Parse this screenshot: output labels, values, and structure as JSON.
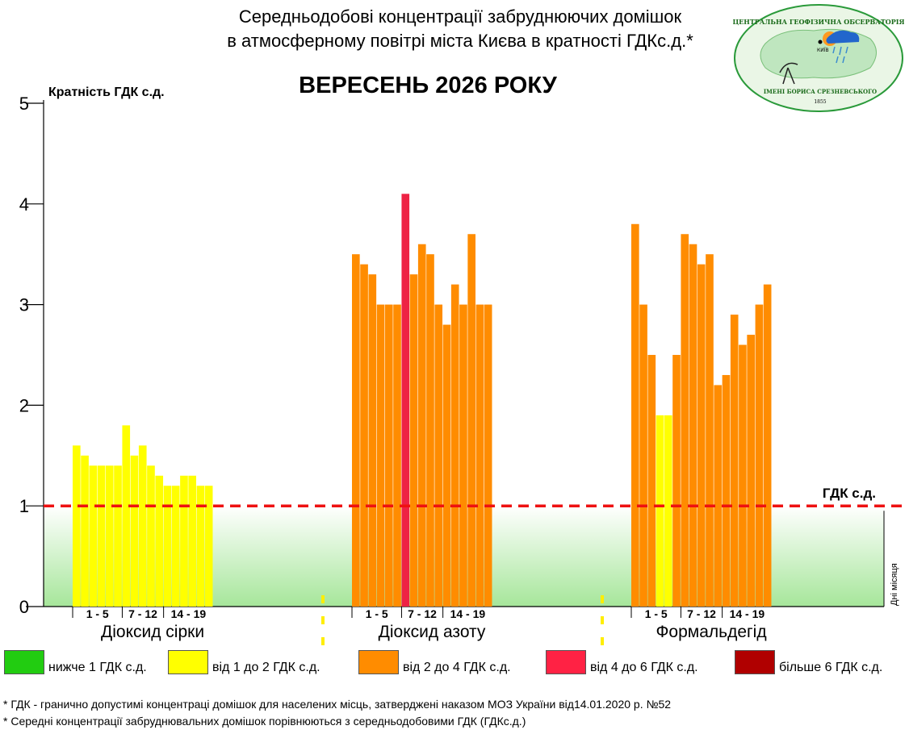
{
  "header": {
    "title_line1": "Середньодобові концентрації забруднюючих домішок",
    "title_line2": "в атмосферному повітрі міста Києва в кратності ГДКс.д.*",
    "subtitle": "ВЕРЕСЕНЬ 2026 РОКУ"
  },
  "logo": {
    "text_top": "ЦЕНТРАЛЬНА ГЕОФІЗИЧНА ОБСЕРВАТОРІЯ",
    "text_bottom": "ІМЕНІ БОРИСА СРЕЗНЕВСЬКОГО",
    "year": "1855",
    "city": "КИЇВ"
  },
  "chart_data": {
    "type": "bar",
    "ylabel": "Кратність ГДК с.д.",
    "xlabel": "Дні місяця",
    "ylim": [
      0,
      5
    ],
    "yticks": [
      "0",
      "1",
      "2",
      "3",
      "4",
      "5"
    ],
    "threshold": {
      "value": 1,
      "label": "ГДК с.д."
    },
    "groups": [
      {
        "name": "Діоксид сірки",
        "day_labels": [
          "1 - 5",
          "7 - 12",
          "14 - 19"
        ],
        "values": [
          1.6,
          1.5,
          1.4,
          1.4,
          1.4,
          1.4,
          1.8,
          1.5,
          1.6,
          1.4,
          1.3,
          1.2,
          1.2,
          1.3,
          1.3,
          1.2,
          1.2
        ],
        "colors": [
          "#ffff00",
          "#ffff00",
          "#ffff00",
          "#ffff00",
          "#ffff00",
          "#ffff00",
          "#ffff00",
          "#ffff00",
          "#ffff00",
          "#ffff00",
          "#ffff00",
          "#ffff00",
          "#ffff00",
          "#ffff00",
          "#ffff00",
          "#ffff00",
          "#ffff00"
        ]
      },
      {
        "name": "Діоксид азоту",
        "day_labels": [
          "1 - 5",
          "7 - 12",
          "14 - 19"
        ],
        "values": [
          3.5,
          3.4,
          3.3,
          3.0,
          3.0,
          3.0,
          4.1,
          3.3,
          3.6,
          3.5,
          3.0,
          2.8,
          3.2,
          3.0,
          3.7,
          3.0,
          3.0
        ],
        "colors": [
          "#ff8c00",
          "#ff8c00",
          "#ff8c00",
          "#ff8c00",
          "#ff8c00",
          "#ff8c00",
          "#ee2244",
          "#ff8c00",
          "#ff8c00",
          "#ff8c00",
          "#ff8c00",
          "#ff8c00",
          "#ff8c00",
          "#ff8c00",
          "#ff8c00",
          "#ff8c00",
          "#ff8c00"
        ]
      },
      {
        "name": "Формальдегід",
        "day_labels": [
          "1 - 5",
          "7 - 12",
          "14 - 19"
        ],
        "values": [
          3.8,
          3.0,
          2.5,
          1.9,
          1.9,
          2.5,
          3.7,
          3.6,
          3.4,
          3.5,
          2.2,
          2.3,
          2.9,
          2.6,
          2.7,
          3.0,
          3.2
        ],
        "colors": [
          "#ff8c00",
          "#ff8c00",
          "#ff8c00",
          "#ffff00",
          "#ffff00",
          "#ff8c00",
          "#ff8c00",
          "#ff8c00",
          "#ff8c00",
          "#ff8c00",
          "#ff8c00",
          "#ff8c00",
          "#ff8c00",
          "#ff8c00",
          "#ff8c00",
          "#ff8c00",
          "#ff8c00"
        ]
      }
    ],
    "legend": [
      {
        "label": "нижче 1 ГДК с.д.",
        "color": "#22cc11"
      },
      {
        "label": "від 1 до 2 ГДК с.д.",
        "color": "#ffff00"
      },
      {
        "label": "від 2 до 4 ГДК с.д.",
        "color": "#ff8c00"
      },
      {
        "label": "від 4 до 6 ГДК с.д.",
        "color": "#ff2244"
      },
      {
        "label": "більше 6 ГДК с.д.",
        "color": "#b00000"
      }
    ]
  },
  "footnotes": {
    "line1": "* ГДК - гранично допустимі концентраці домішок для населених місць, затверджені наказом МОЗ України від14.01.2020 р. №52",
    "line2": "* Середні концентрації забруднювальних домішок порівнюються з середньодобовими  ГДК (ГДКс.д.)"
  }
}
